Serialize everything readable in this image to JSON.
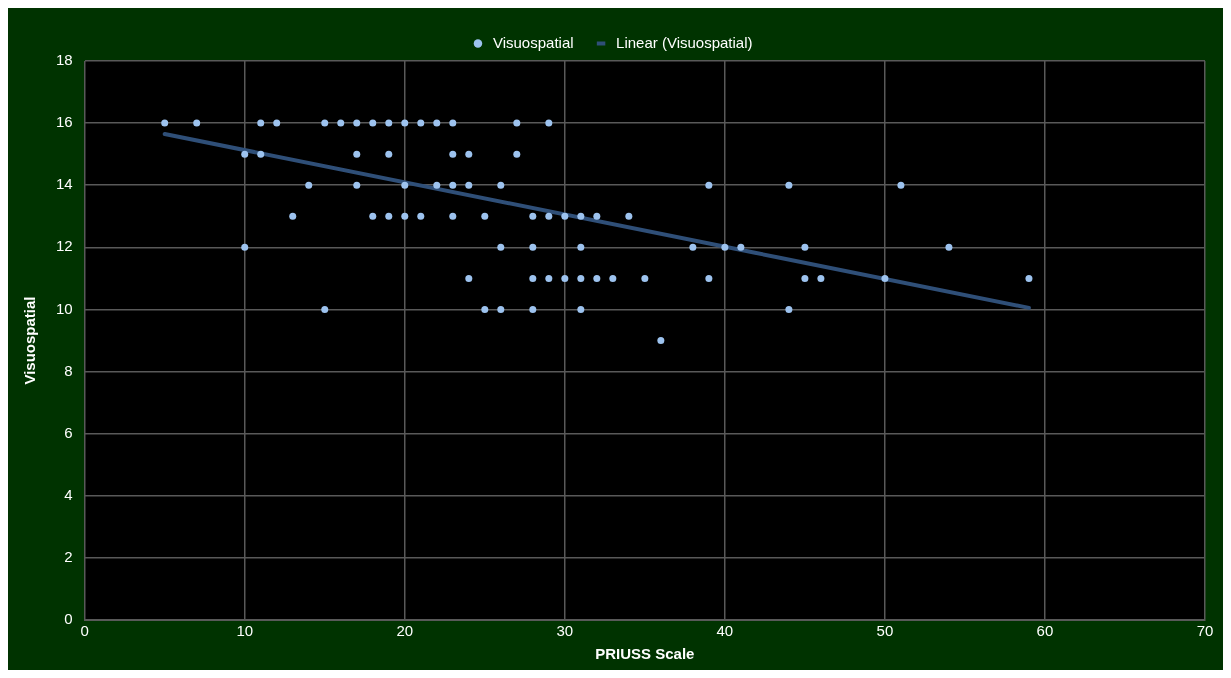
{
  "chart_data": {
    "type": "scatter",
    "xlabel": "PRIUSS Scale",
    "ylabel": "Visuospatial",
    "xlim": [
      0,
      70
    ],
    "xticks": [
      0,
      10,
      20,
      30,
      40,
      50,
      60,
      70
    ],
    "ylim": [
      0,
      18
    ],
    "yticks": [
      0,
      2,
      4,
      6,
      8,
      10,
      12,
      14,
      16,
      18
    ],
    "grid": true,
    "legend": "top",
    "series": [
      {
        "name": "Visuospatial",
        "marker": "circle",
        "color": "#9dc3ef",
        "x": [
          5,
          7,
          11,
          12,
          15,
          16,
          17,
          18,
          19,
          20,
          21,
          22,
          23,
          27,
          29,
          10,
          11,
          17,
          19,
          23,
          24,
          27,
          14,
          17,
          20,
          22,
          23,
          24,
          26,
          39,
          44,
          51,
          13,
          18,
          19,
          20,
          21,
          23,
          25,
          28,
          29,
          30,
          31,
          32,
          34,
          10,
          26,
          28,
          31,
          38,
          40,
          41,
          45,
          54,
          24,
          28,
          29,
          30,
          31,
          32,
          33,
          35,
          39,
          45,
          46,
          50,
          59,
          15,
          25,
          26,
          28,
          31,
          44,
          36
        ],
        "values": [
          16,
          16,
          16,
          16,
          16,
          16,
          16,
          16,
          16,
          16,
          16,
          16,
          16,
          16,
          16,
          15,
          15,
          15,
          15,
          15,
          15,
          15,
          14,
          14,
          14,
          14,
          14,
          14,
          14,
          14,
          14,
          14,
          13,
          13,
          13,
          13,
          13,
          13,
          13,
          13,
          13,
          13,
          13,
          13,
          13,
          12,
          12,
          12,
          12,
          12,
          12,
          12,
          12,
          12,
          11,
          11,
          11,
          11,
          11,
          11,
          11,
          11,
          11,
          11,
          11,
          11,
          11,
          10,
          10,
          10,
          10,
          10,
          10,
          9
        ]
      },
      {
        "name": "Linear (Visuospatial)",
        "type": "line",
        "marker": "none",
        "color": "#2f4f78",
        "x": [
          5,
          59
        ],
        "values": [
          15.65,
          10.05
        ]
      }
    ]
  }
}
